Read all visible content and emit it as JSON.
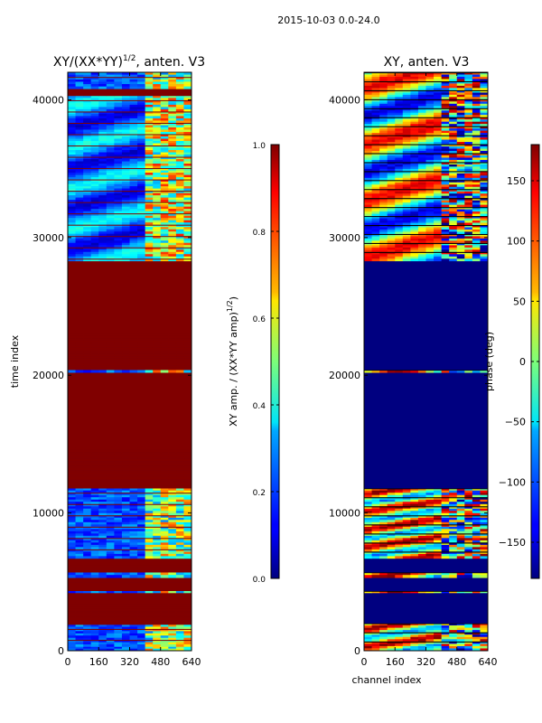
{
  "suptitle": "2015-10-03 0.0-24.0",
  "chart_data": [
    {
      "type": "heatmap",
      "title": "XY/(XX*YY)",
      "title_exponent": "1/2",
      "title_suffix": ", anten. V3",
      "xlabel": "",
      "ylabel": "time index",
      "xlim": [
        0,
        640
      ],
      "ylim": [
        0,
        42000
      ],
      "xticks": [
        0,
        160,
        320,
        480,
        640
      ],
      "yticks": [
        0,
        10000,
        20000,
        30000,
        40000
      ],
      "colorbar": {
        "label": "XY amp. / (XX*YY amp)",
        "label_exponent": "1/2",
        "range": [
          0.0,
          1.0
        ],
        "ticks": [
          "0.0",
          "0.2",
          "0.4",
          "0.6",
          "0.8",
          "1.0"
        ],
        "tick_values": [
          0.0,
          0.2,
          0.4,
          0.6,
          0.8,
          1.0
        ]
      },
      "bands": [
        {
          "t0": 0,
          "t1": 300,
          "pattern": "low_noisy"
        },
        {
          "t0": 300,
          "t1": 1900,
          "pattern": "low_noisy"
        },
        {
          "t0": 1900,
          "t1": 4200,
          "pattern": "saturated"
        },
        {
          "t0": 4200,
          "t1": 4350,
          "pattern": "low_noisy"
        },
        {
          "t0": 4350,
          "t1": 5300,
          "pattern": "saturated"
        },
        {
          "t0": 5300,
          "t1": 5700,
          "pattern": "low_noisy"
        },
        {
          "t0": 5700,
          "t1": 6700,
          "pattern": "saturated"
        },
        {
          "t0": 6700,
          "t1": 11800,
          "pattern": "low_noisy"
        },
        {
          "t0": 11800,
          "t1": 20200,
          "pattern": "saturated"
        },
        {
          "t0": 20200,
          "t1": 20400,
          "pattern": "low_noisy"
        },
        {
          "t0": 20400,
          "t1": 28300,
          "pattern": "saturated"
        },
        {
          "t0": 28300,
          "t1": 40300,
          "pattern": "low_wavy"
        },
        {
          "t0": 40300,
          "t1": 40800,
          "pattern": "saturated"
        },
        {
          "t0": 40800,
          "t1": 42000,
          "pattern": "low_noisy"
        }
      ]
    },
    {
      "type": "heatmap",
      "title": "XY, anten. V3",
      "xlabel": "channel index",
      "ylabel": "",
      "xlim": [
        0,
        640
      ],
      "ylim": [
        0,
        42000
      ],
      "xticks": [
        0,
        160,
        320,
        480,
        640
      ],
      "yticks": [
        0,
        10000,
        20000,
        30000,
        40000
      ],
      "colorbar": {
        "label": "phase (deg)",
        "range": [
          -180,
          180
        ],
        "ticks": [
          "−150",
          "−100",
          "−50",
          "0",
          "50",
          "100",
          "150"
        ],
        "tick_values": [
          -150,
          -100,
          -50,
          0,
          50,
          100,
          150
        ]
      },
      "bands": [
        {
          "t0": 0,
          "t1": 2000,
          "pattern": "phase_noisy"
        },
        {
          "t0": 2000,
          "t1": 4200,
          "pattern": "flat_low"
        },
        {
          "t0": 4200,
          "t1": 4350,
          "pattern": "phase_noisy"
        },
        {
          "t0": 4350,
          "t1": 5300,
          "pattern": "flat_low"
        },
        {
          "t0": 5300,
          "t1": 5700,
          "pattern": "phase_noisy"
        },
        {
          "t0": 5700,
          "t1": 6700,
          "pattern": "flat_low"
        },
        {
          "t0": 6700,
          "t1": 11800,
          "pattern": "phase_noisy"
        },
        {
          "t0": 11800,
          "t1": 20200,
          "pattern": "flat_low"
        },
        {
          "t0": 20200,
          "t1": 20400,
          "pattern": "phase_noisy"
        },
        {
          "t0": 20400,
          "t1": 28300,
          "pattern": "flat_low"
        },
        {
          "t0": 28300,
          "t1": 42000,
          "pattern": "phase_wavy"
        }
      ]
    }
  ]
}
